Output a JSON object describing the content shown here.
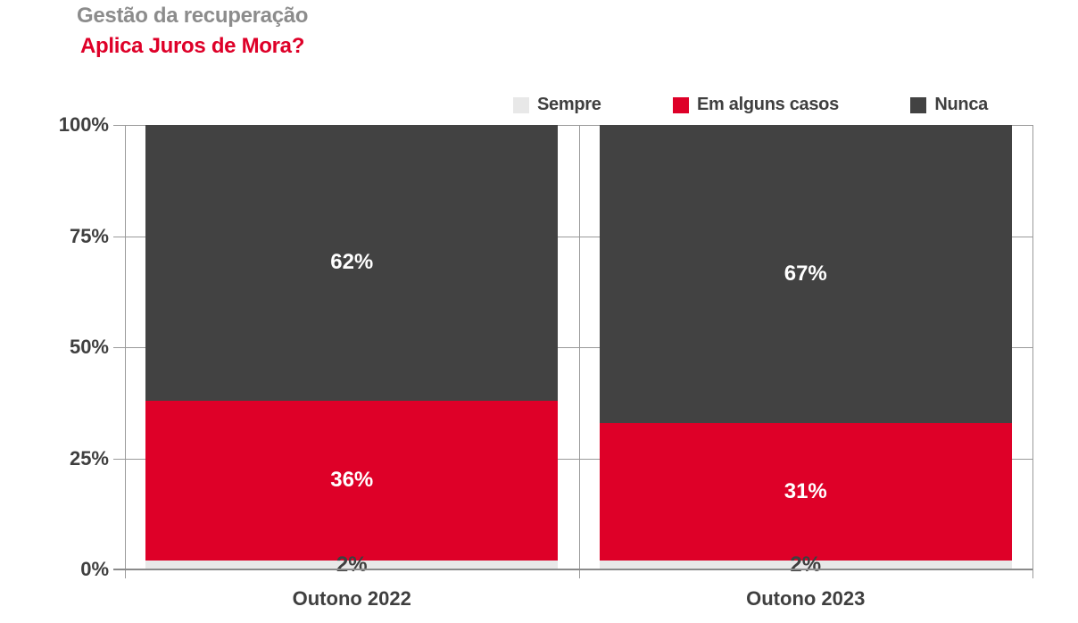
{
  "header": {
    "title": "Gestão da recuperação",
    "subtitle": "Aplica Juros de Mora?"
  },
  "colors": {
    "accent_red": "#de0028",
    "dark_gray": "#424242",
    "light_gray": "#e8e8e8",
    "title_gray": "#8c8c8c",
    "grid_gray": "#9a9a9a",
    "text_dark": "#3f3f3f"
  },
  "chart_data": {
    "type": "bar",
    "stacked": true,
    "unit": "%",
    "title": "Gestão da recuperação",
    "subtitle": "Aplica Juros de Mora?",
    "categories": [
      "Outono 2022",
      "Outono 2023"
    ],
    "series": [
      {
        "name": "Sempre",
        "color": "#e8e8e8",
        "label_color": "#3f3f3f",
        "values": [
          2,
          2
        ]
      },
      {
        "name": "Em alguns casos",
        "color": "#de0028",
        "label_color": "#ffffff",
        "values": [
          36,
          31
        ]
      },
      {
        "name": "Nunca",
        "color": "#424242",
        "label_color": "#ffffff",
        "values": [
          62,
          67
        ]
      }
    ],
    "data_labels": [
      [
        "2%",
        "36%",
        "62%"
      ],
      [
        "2%",
        "31%",
        "67%"
      ]
    ],
    "y_ticks": [
      "0%",
      "25%",
      "50%",
      "75%",
      "100%"
    ],
    "y_tick_values": [
      0,
      25,
      50,
      75,
      100
    ],
    "ylim": [
      0,
      100
    ],
    "legend_position": "top",
    "grid": true
  }
}
